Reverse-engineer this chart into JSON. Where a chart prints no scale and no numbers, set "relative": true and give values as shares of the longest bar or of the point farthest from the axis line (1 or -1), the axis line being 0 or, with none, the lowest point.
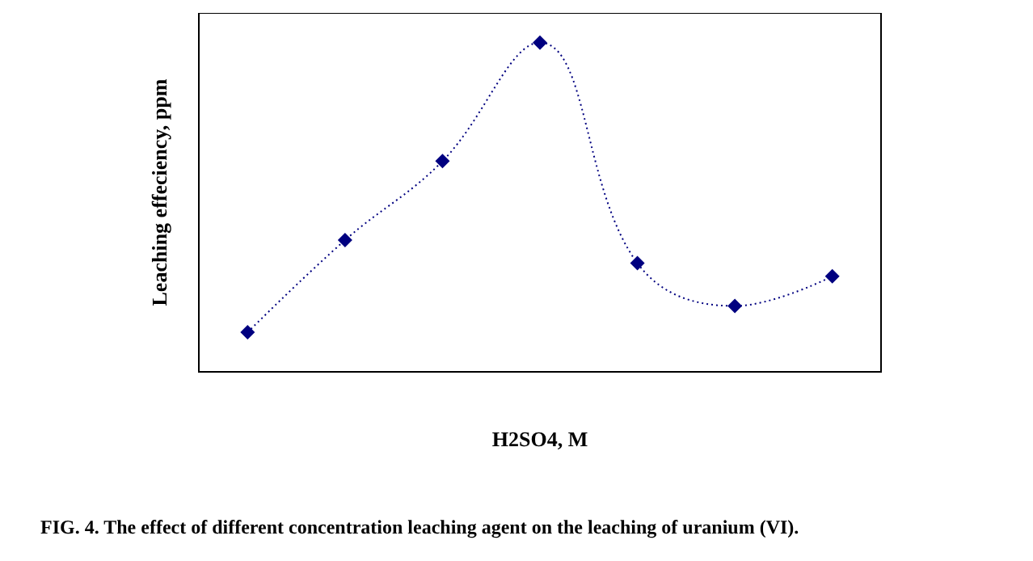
{
  "chart_data": {
    "type": "line",
    "relative": true,
    "xlabel": "H2SO4, M",
    "ylabel": "Leaching effeciency, ppm",
    "annotations": [
      "FIG. 4. The effect of different concentration leaching agent on the leaching of uranium (VI)."
    ],
    "categories": [
      null,
      null,
      null,
      null,
      null,
      null,
      null
    ],
    "series": [
      {
        "color": "#000080",
        "values": [
          0.12,
          0.4,
          0.64,
          1,
          0.33,
          0.2,
          0.29
        ]
      }
    ],
    "marker": "diamond",
    "line_style": "dotted"
  }
}
